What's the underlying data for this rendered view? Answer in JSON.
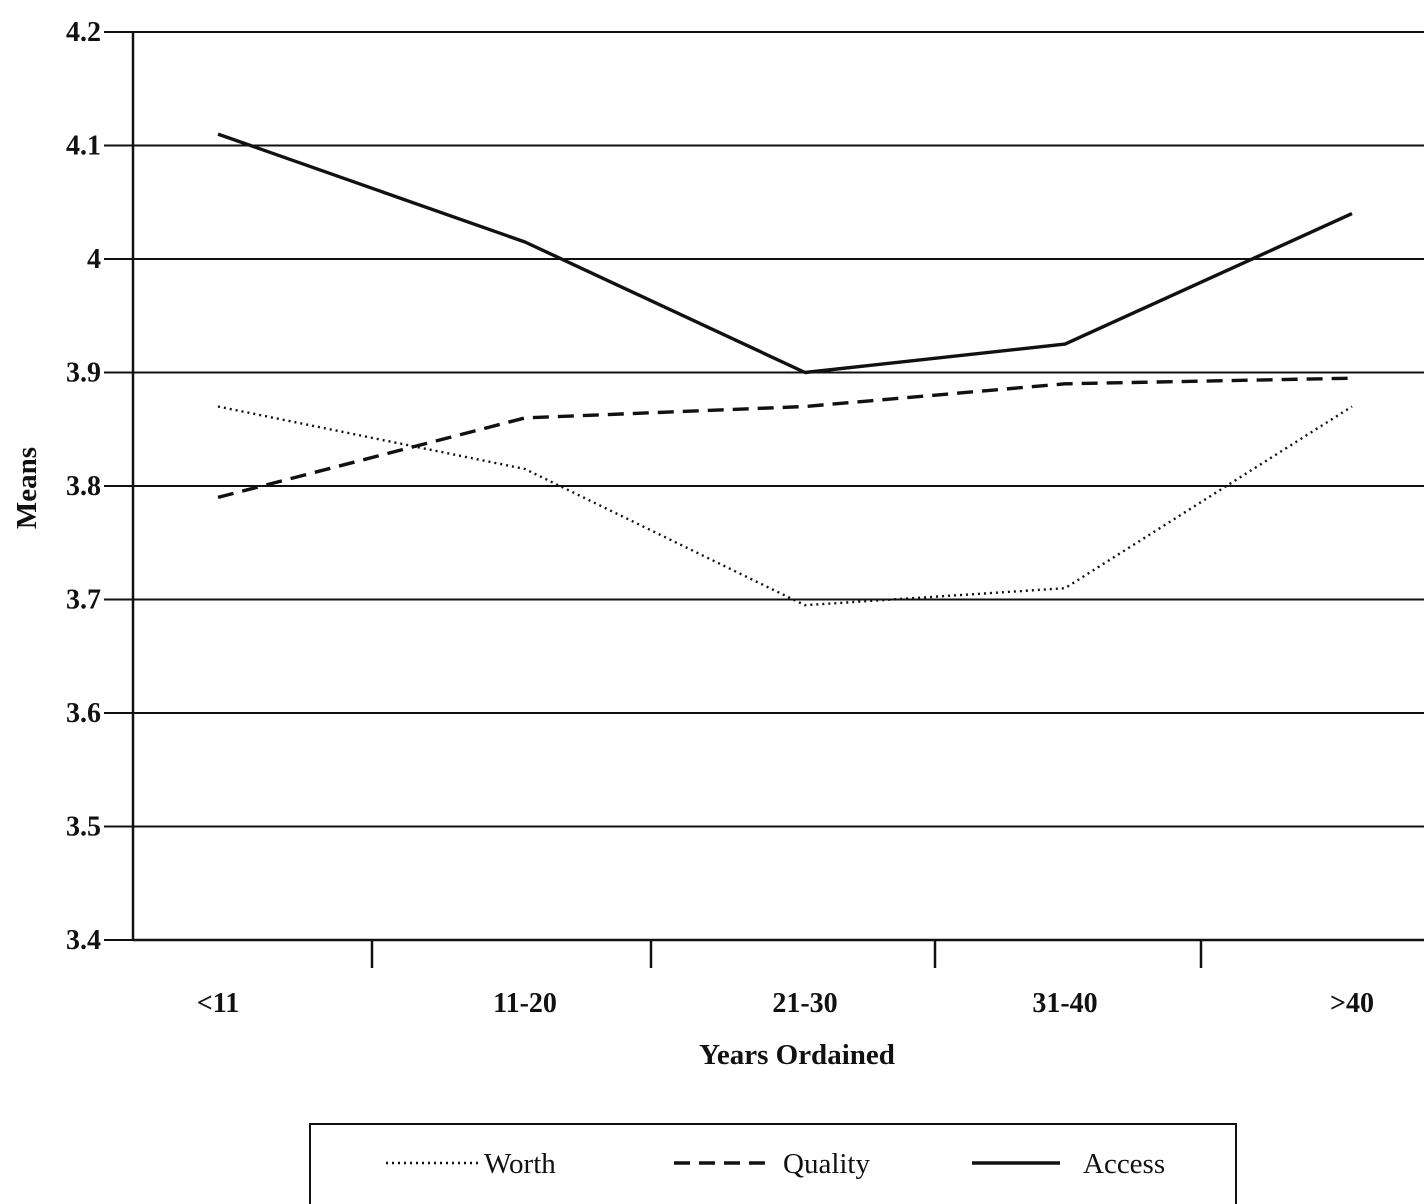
{
  "chart_data": {
    "type": "line",
    "title": "",
    "xlabel": "Years Ordained",
    "ylabel": "Means",
    "categories": [
      "<11",
      "11-20",
      "21-30",
      "31-40",
      ">40"
    ],
    "ylim": [
      3.4,
      4.2
    ],
    "yticks": [
      "3.4",
      "3.5",
      "3.6",
      "3.7",
      "3.8",
      "3.9",
      "4",
      "4.1",
      "4.2"
    ],
    "grid": true,
    "legend_position": "bottom-center",
    "series": [
      {
        "name": "Worth",
        "style": "dotted",
        "values": [
          3.87,
          3.815,
          3.695,
          3.71,
          3.87
        ]
      },
      {
        "name": "Quality",
        "style": "dashed",
        "values": [
          3.79,
          3.86,
          3.87,
          3.89,
          3.895
        ]
      },
      {
        "name": "Access",
        "style": "solid",
        "values": [
          4.11,
          4.015,
          3.9,
          3.925,
          4.04
        ]
      }
    ]
  }
}
